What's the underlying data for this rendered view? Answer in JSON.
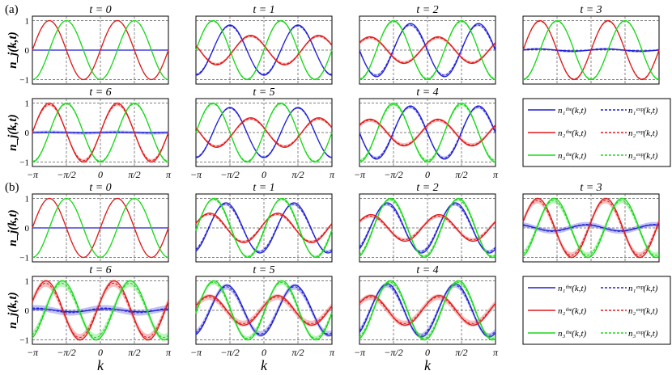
{
  "figure": {
    "x_axis_label": "k",
    "y_axis_label": "n_j(k,t)",
    "x_ticks": [
      {
        "value": -3.14159,
        "label": "−π"
      },
      {
        "value": -1.5708,
        "label": "−π/2"
      },
      {
        "value": 0,
        "label": "0"
      },
      {
        "value": 1.5708,
        "label": "π/2"
      },
      {
        "value": 3.14159,
        "label": "π"
      }
    ],
    "y_ticks": [
      {
        "value": 1,
        "label": "1"
      },
      {
        "value": 0,
        "label": "0"
      },
      {
        "value": -1,
        "label": "−1"
      }
    ],
    "colors": {
      "n1": "#1f1fd6",
      "n2": "#e01818",
      "n3": "#18d818"
    }
  },
  "legend": [
    {
      "key": "n1",
      "theory": "n₁ᵗʰᵉ(k,t)",
      "experiment": "n₁ᵉˣᵖ(k,t)"
    },
    {
      "key": "n2",
      "theory": "n₂ᵗʰᵉ(k,t)",
      "experiment": "n₂ᵉˣᵖ(k,t)"
    },
    {
      "key": "n3",
      "theory": "n₃ᵗʰᵉ(k,t)",
      "experiment": "n₃ᵉˣᵖ(k,t)"
    }
  ],
  "groups": [
    {
      "label": "(a)"
    },
    {
      "label": "(b)"
    }
  ],
  "chart_data": [
    {
      "type": "line",
      "group": "(a)",
      "title": "t = 0",
      "xlim": [
        -3.14159,
        3.14159
      ],
      "ylim": [
        -1.15,
        1.15
      ],
      "grid": true,
      "series": [
        {
          "key": "n1",
          "amp": 0.0,
          "phase": 0.0,
          "exp_amp": 0.0,
          "exp_phase": 0.0,
          "band": 0.0
        },
        {
          "key": "n2",
          "amp": 1.0,
          "phase": 0.0,
          "exp_amp": 1.0,
          "exp_phase": 0.0,
          "band": 0.0
        },
        {
          "key": "n3",
          "amp": 1.0,
          "phase": -1.5708,
          "exp_amp": 1.0,
          "exp_phase": -1.5708,
          "band": 0.0
        }
      ]
    },
    {
      "type": "line",
      "group": "(a)",
      "title": "t = 1",
      "xlim": [
        -3.14159,
        3.14159
      ],
      "ylim": [
        -1.15,
        1.15
      ],
      "grid": true,
      "series": [
        {
          "key": "n1",
          "amp": 0.85,
          "phase": -1.5708,
          "exp_amp": 0.82,
          "exp_phase": -1.55,
          "band": 0.03
        },
        {
          "key": "n2",
          "amp": 0.5,
          "phase": 2.8,
          "exp_amp": 0.47,
          "exp_phase": 2.8,
          "band": 0.04
        },
        {
          "key": "n3",
          "amp": 1.0,
          "phase": 0.0,
          "exp_amp": 0.98,
          "exp_phase": 0.0,
          "band": 0.02
        }
      ]
    },
    {
      "type": "line",
      "group": "(a)",
      "title": "t = 2",
      "xlim": [
        -3.14159,
        3.14159
      ],
      "ylim": [
        -1.15,
        1.15
      ],
      "grid": true,
      "series": [
        {
          "key": "n1",
          "amp": 0.9,
          "phase": -3.14159,
          "exp_amp": 0.85,
          "exp_phase": -3.1,
          "band": 0.04
        },
        {
          "key": "n2",
          "amp": 0.45,
          "phase": 0.6,
          "exp_amp": 0.42,
          "exp_phase": 0.6,
          "band": 0.05
        },
        {
          "key": "n3",
          "amp": 1.0,
          "phase": -1.5708,
          "exp_amp": 0.97,
          "exp_phase": -1.57,
          "band": 0.03
        }
      ]
    },
    {
      "type": "line",
      "group": "(a)",
      "title": "t = 3",
      "xlim": [
        -3.14159,
        3.14159
      ],
      "ylim": [
        -1.15,
        1.15
      ],
      "grid": true,
      "series": [
        {
          "key": "n1",
          "amp": 0.03,
          "phase": 0.0,
          "exp_amp": 0.05,
          "exp_phase": 0.3,
          "band": 0.03
        },
        {
          "key": "n2",
          "amp": 1.0,
          "phase": 0.0,
          "exp_amp": 0.98,
          "exp_phase": 0.0,
          "band": 0.02
        },
        {
          "key": "n3",
          "amp": 1.0,
          "phase": -1.5708,
          "exp_amp": 0.98,
          "exp_phase": -1.57,
          "band": 0.02
        }
      ]
    },
    {
      "type": "line",
      "group": "(a)",
      "title": "t = 6",
      "xlim": [
        -3.14159,
        3.14159
      ],
      "ylim": [
        -1.15,
        1.15
      ],
      "grid": true,
      "series": [
        {
          "key": "n1",
          "amp": 0.0,
          "phase": 0.0,
          "exp_amp": 0.02,
          "exp_phase": 0.0,
          "band": 0.05
        },
        {
          "key": "n2",
          "amp": 1.0,
          "phase": 0.0,
          "exp_amp": 0.95,
          "exp_phase": 0.0,
          "band": 0.05
        },
        {
          "key": "n3",
          "amp": 1.0,
          "phase": -1.5708,
          "exp_amp": 0.97,
          "exp_phase": -1.57,
          "band": 0.02
        }
      ]
    },
    {
      "type": "line",
      "group": "(a)",
      "title": "t = 5",
      "xlim": [
        -3.14159,
        3.14159
      ],
      "ylim": [
        -1.15,
        1.15
      ],
      "grid": true,
      "series": [
        {
          "key": "n1",
          "amp": 0.85,
          "phase": -1.5708,
          "exp_amp": 0.83,
          "exp_phase": -1.55,
          "band": 0.03
        },
        {
          "key": "n2",
          "amp": 0.5,
          "phase": 2.8,
          "exp_amp": 0.46,
          "exp_phase": 2.8,
          "band": 0.04
        },
        {
          "key": "n3",
          "amp": 1.0,
          "phase": 0.0,
          "exp_amp": 0.97,
          "exp_phase": 0.0,
          "band": 0.02
        }
      ]
    },
    {
      "type": "line",
      "group": "(a)",
      "title": "t = 4",
      "xlim": [
        -3.14159,
        3.14159
      ],
      "ylim": [
        -1.15,
        1.15
      ],
      "grid": true,
      "series": [
        {
          "key": "n1",
          "amp": 0.9,
          "phase": -3.14159,
          "exp_amp": 0.86,
          "exp_phase": -3.1,
          "band": 0.05
        },
        {
          "key": "n2",
          "amp": 0.45,
          "phase": 0.6,
          "exp_amp": 0.42,
          "exp_phase": 0.6,
          "band": 0.06
        },
        {
          "key": "n3",
          "amp": 1.0,
          "phase": -1.5708,
          "exp_amp": 0.95,
          "exp_phase": -1.57,
          "band": 0.05
        }
      ]
    },
    {
      "type": "line",
      "group": "(b)",
      "title": "t = 0",
      "xlim": [
        -3.14159,
        3.14159
      ],
      "ylim": [
        -1.15,
        1.15
      ],
      "grid": true,
      "series": [
        {
          "key": "n1",
          "amp": 0.0,
          "phase": 0.0,
          "exp_amp": 0.0,
          "exp_phase": 0.0,
          "band": 0.0
        },
        {
          "key": "n2",
          "amp": 1.0,
          "phase": 0.0,
          "exp_amp": 1.0,
          "exp_phase": 0.0,
          "band": 0.0
        },
        {
          "key": "n3",
          "amp": 1.0,
          "phase": -1.5708,
          "exp_amp": 1.0,
          "exp_phase": -1.5708,
          "band": 0.0
        }
      ]
    },
    {
      "type": "line",
      "group": "(b)",
      "title": "t = 1",
      "xlim": [
        -3.14159,
        3.14159
      ],
      "ylim": [
        -1.15,
        1.15
      ],
      "grid": true,
      "series": [
        {
          "key": "n1",
          "amp": 0.85,
          "phase": -1.2,
          "exp_amp": 0.8,
          "exp_phase": -1.15,
          "band": 0.04
        },
        {
          "key": "n2",
          "amp": 0.5,
          "phase": 0.3,
          "exp_amp": 0.46,
          "exp_phase": 0.35,
          "band": 0.04
        },
        {
          "key": "n3",
          "amp": 1.0,
          "phase": -0.1,
          "exp_amp": 0.97,
          "exp_phase": -0.05,
          "band": 0.04
        }
      ]
    },
    {
      "type": "line",
      "group": "(b)",
      "title": "t = 2",
      "xlim": [
        -3.14159,
        3.14159
      ],
      "ylim": [
        -1.15,
        1.15
      ],
      "grid": true,
      "series": [
        {
          "key": "n1",
          "amp": 0.85,
          "phase": -1.0,
          "exp_amp": 0.8,
          "exp_phase": -0.95,
          "band": 0.05
        },
        {
          "key": "n2",
          "amp": 0.45,
          "phase": 0.5,
          "exp_amp": 0.4,
          "exp_phase": 0.55,
          "band": 0.06
        },
        {
          "key": "n3",
          "amp": 1.0,
          "phase": -1.3,
          "exp_amp": 0.96,
          "exp_phase": -1.25,
          "band": 0.05
        }
      ]
    },
    {
      "type": "line",
      "group": "(b)",
      "title": "t = 3",
      "xlim": [
        -3.14159,
        3.14159
      ],
      "ylim": [
        -1.15,
        1.15
      ],
      "grid": true,
      "series": [
        {
          "key": "n1",
          "amp": 0.1,
          "phase": 2.0,
          "exp_amp": 0.12,
          "exp_phase": 2.0,
          "band": 0.08
        },
        {
          "key": "n2",
          "amp": 1.0,
          "phase": 0.2,
          "exp_amp": 0.93,
          "exp_phase": 0.25,
          "band": 0.1
        },
        {
          "key": "n3",
          "amp": 1.0,
          "phase": -1.3,
          "exp_amp": 0.93,
          "exp_phase": -1.25,
          "band": 0.1
        }
      ]
    },
    {
      "type": "line",
      "group": "(b)",
      "title": "t = 6",
      "xlim": [
        -3.14159,
        3.14159
      ],
      "ylim": [
        -1.15,
        1.15
      ],
      "grid": true,
      "series": [
        {
          "key": "n1",
          "amp": 0.05,
          "phase": 1.0,
          "exp_amp": 0.08,
          "exp_phase": 1.2,
          "band": 0.1
        },
        {
          "key": "n2",
          "amp": 1.0,
          "phase": 0.3,
          "exp_amp": 0.92,
          "exp_phase": 0.35,
          "band": 0.12
        },
        {
          "key": "n3",
          "amp": 1.0,
          "phase": -1.2,
          "exp_amp": 0.92,
          "exp_phase": -1.15,
          "band": 0.12
        }
      ]
    },
    {
      "type": "line",
      "group": "(b)",
      "title": "t = 5",
      "xlim": [
        -3.14159,
        3.14159
      ],
      "ylim": [
        -1.15,
        1.15
      ],
      "grid": true,
      "series": [
        {
          "key": "n1",
          "amp": 0.85,
          "phase": -1.3,
          "exp_amp": 0.8,
          "exp_phase": -1.25,
          "band": 0.1
        },
        {
          "key": "n2",
          "amp": 0.5,
          "phase": 0.3,
          "exp_amp": 0.45,
          "exp_phase": 0.35,
          "band": 0.1
        },
        {
          "key": "n3",
          "amp": 1.0,
          "phase": -0.1,
          "exp_amp": 0.95,
          "exp_phase": -0.05,
          "band": 0.08
        }
      ]
    },
    {
      "type": "line",
      "group": "(b)",
      "title": "t = 4",
      "xlim": [
        -3.14159,
        3.14159
      ],
      "ylim": [
        -1.15,
        1.15
      ],
      "grid": true,
      "series": [
        {
          "key": "n1",
          "amp": 0.9,
          "phase": -1.0,
          "exp_amp": 0.85,
          "exp_phase": -0.95,
          "band": 0.08
        },
        {
          "key": "n2",
          "amp": 0.5,
          "phase": 0.5,
          "exp_amp": 0.45,
          "exp_phase": 0.55,
          "band": 0.1
        },
        {
          "key": "n3",
          "amp": 1.0,
          "phase": -1.3,
          "exp_amp": 0.95,
          "exp_phase": -1.25,
          "band": 0.08
        }
      ]
    }
  ]
}
